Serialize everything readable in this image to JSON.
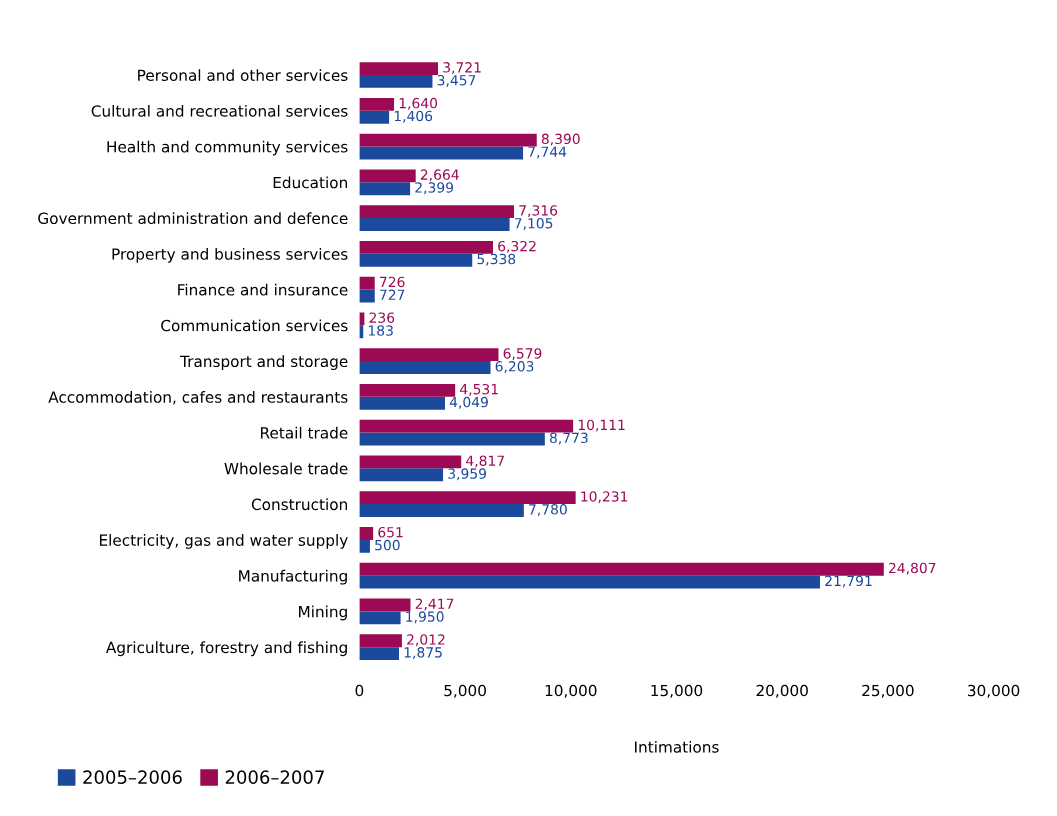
{
  "chart_data": {
    "type": "bar",
    "orientation": "horizontal",
    "xlabel": "Intimations",
    "categories": [
      "Personal and other services",
      "Cultural and recreational services",
      "Health and community services",
      "Education",
      "Government administration and defence",
      "Property and business services",
      "Finance and insurance",
      "Communication services",
      "Transport and storage",
      "Accommodation, cafes and restaurants",
      "Retail trade",
      "Wholesale trade",
      "Construction",
      "Electricity, gas and water supply",
      "Manufacturing",
      "Mining",
      "Agriculture, forestry and fishing"
    ],
    "series": [
      {
        "name": "2005–2006",
        "color": "#1b4a9c",
        "values": [
          3457,
          1406,
          7744,
          2399,
          7105,
          5338,
          727,
          183,
          6203,
          4049,
          8773,
          3959,
          7780,
          500,
          21791,
          1950,
          1875
        ],
        "value_labels": [
          "3,457",
          "1,406",
          "7,744",
          "2,399",
          "7,105",
          "5,338",
          "727",
          "183",
          "6,203",
          "4,049",
          "8,773",
          "3,959",
          "7,780",
          "500",
          "21,791",
          "1,950",
          "1,875"
        ]
      },
      {
        "name": "2006–2007",
        "color": "#9c0a55",
        "values": [
          3721,
          1640,
          8390,
          2664,
          7316,
          6322,
          726,
          236,
          6579,
          4531,
          10111,
          4817,
          10231,
          651,
          24807,
          2417,
          2012
        ],
        "value_labels": [
          "3,721",
          "1,640",
          "8,390",
          "2,664",
          "7,316",
          "6,322",
          "726",
          "236",
          "6,579",
          "4,531",
          "10,111",
          "4,817",
          "10,231",
          "651",
          "24,807",
          "2,417",
          "2,012"
        ]
      }
    ],
    "xlim": [
      0,
      30000
    ],
    "xticks": [
      0,
      {
        "value": 5000,
        "label": "5,000"
      },
      {
        "value": 10000,
        "label": "10,000"
      },
      {
        "value": 15000,
        "label": "15,000"
      },
      {
        "value": 20000,
        "label": "20,000"
      },
      {
        "value": 25000,
        "label": "25,000"
      },
      {
        "value": 30000,
        "label": "30,000"
      }
    ],
    "grid": false,
    "legend": "bottom left"
  }
}
